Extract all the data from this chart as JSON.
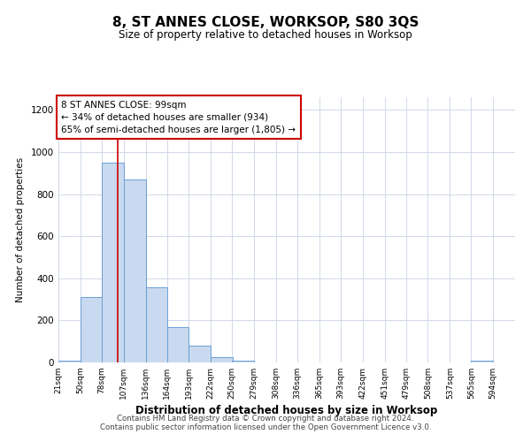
{
  "title": "8, ST ANNES CLOSE, WORKSOP, S80 3QS",
  "subtitle": "Size of property relative to detached houses in Worksop",
  "xlabel": "Distribution of detached houses by size in Worksop",
  "ylabel": "Number of detached properties",
  "bar_left_edges": [
    21,
    50,
    78,
    107,
    136,
    164,
    193,
    222,
    250,
    279,
    308,
    336,
    365,
    393,
    422,
    451,
    479,
    508,
    537,
    565
  ],
  "bar_heights": [
    10,
    310,
    950,
    870,
    355,
    170,
    80,
    25,
    10,
    0,
    0,
    0,
    0,
    0,
    0,
    0,
    0,
    0,
    0,
    10
  ],
  "bin_width": 29,
  "bar_color": "#c9d9ef",
  "bar_edge_color": "#6a9fd8",
  "red_line_x": 99,
  "annotation_title": "8 ST ANNES CLOSE: 99sqm",
  "annotation_line1": "← 34% of detached houses are smaller (934)",
  "annotation_line2": "65% of semi-detached houses are larger (1,805) →",
  "annotation_box_color": "#ffffff",
  "annotation_box_edge": "#cc0000",
  "ylim": [
    0,
    1260
  ],
  "xlim": [
    21,
    623
  ],
  "tick_labels": [
    "21sqm",
    "50sqm",
    "78sqm",
    "107sqm",
    "136sqm",
    "164sqm",
    "193sqm",
    "222sqm",
    "250sqm",
    "279sqm",
    "308sqm",
    "336sqm",
    "365sqm",
    "393sqm",
    "422sqm",
    "451sqm",
    "479sqm",
    "508sqm",
    "537sqm",
    "565sqm",
    "594sqm"
  ],
  "tick_positions": [
    21,
    50,
    78,
    107,
    136,
    164,
    193,
    222,
    250,
    279,
    308,
    336,
    365,
    393,
    422,
    451,
    479,
    508,
    537,
    565,
    594
  ],
  "footer_line1": "Contains HM Land Registry data © Crown copyright and database right 2024.",
  "footer_line2": "Contains public sector information licensed under the Open Government Licence v3.0.",
  "background_color": "#ffffff",
  "grid_color": "#d0d8e8"
}
